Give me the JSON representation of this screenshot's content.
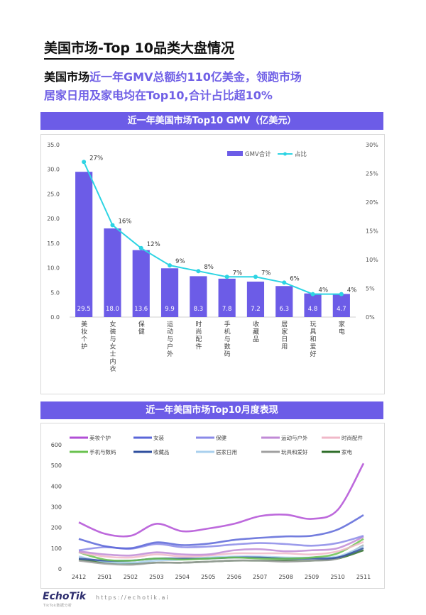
{
  "title": "美国市场-Top 10品类大盘情况",
  "headline": {
    "part1": "美国市场",
    "part2": "近一年GMV总额约110亿美金，领跑市场",
    "part3": "居家日用及家电均在Top10,合计占比超10%"
  },
  "chart1_banner": "近一年美国市场Top10 GMV（亿美元）",
  "chart2_banner": "近一年美国市场Top10月度表现",
  "footer": {
    "logo": "EchoTik",
    "logo_sub": "TikTok数据分析",
    "url": "https://echotik.ai"
  },
  "colors": {
    "accent": "#6c5ce7",
    "line": "#2dd4e3"
  },
  "chart_data": [
    {
      "type": "bar",
      "title": "近一年美国市场Top10 GMV（亿美元）",
      "legend": [
        "GMV合计",
        "占比"
      ],
      "categories": [
        "美妆个护",
        "女装与女士内衣",
        "保健",
        "运动与户外",
        "时尚配件",
        "手机与数码",
        "收藏品",
        "居家日用",
        "玩具和爱好",
        "家电"
      ],
      "series": [
        {
          "name": "GMV合计",
          "values": [
            29.5,
            18.0,
            13.6,
            9.9,
            8.3,
            7.8,
            7.2,
            6.3,
            4.8,
            4.7
          ],
          "labels": [
            "29.5",
            "18.0",
            "13.6",
            "9.9",
            "8.3",
            "7.8",
            "7.2",
            "6.3",
            "4.8",
            "4.7"
          ]
        },
        {
          "name": "占比",
          "values": [
            27,
            16,
            12,
            9,
            8,
            7,
            7,
            6,
            4,
            4
          ],
          "labels": [
            "27%",
            "16%",
            "12%",
            "9%",
            "8%",
            "7%",
            "7%",
            "6%",
            "4%",
            "4%"
          ]
        }
      ],
      "y_left_ticks": [
        "0.0",
        "5.0",
        "10.0",
        "15.0",
        "20.0",
        "25.0",
        "30.0",
        "35.0"
      ],
      "y_right_ticks": [
        "0%",
        "5%",
        "10%",
        "15%",
        "20%",
        "25%",
        "30%"
      ],
      "ylim_left": [
        0,
        35
      ],
      "ylim_right": [
        0,
        30
      ]
    },
    {
      "type": "line",
      "title": "近一年美国市场Top10月度表现",
      "x": [
        "2412",
        "2501",
        "2502",
        "2503",
        "2504",
        "2505",
        "2506",
        "2507",
        "2508",
        "2509",
        "2510",
        "2511"
      ],
      "y_ticks": [
        "0",
        "100",
        "200",
        "300",
        "400",
        "500",
        "600"
      ],
      "ylim": [
        0,
        600
      ],
      "series": [
        {
          "name": "美妆个护",
          "color": "#b14fd6",
          "values": [
            225,
            170,
            160,
            218,
            182,
            195,
            218,
            255,
            262,
            242,
            285,
            510
          ]
        },
        {
          "name": "女装",
          "color": "#5a66d8",
          "values": [
            145,
            110,
            100,
            128,
            115,
            122,
            140,
            150,
            157,
            160,
            190,
            260
          ]
        },
        {
          "name": "保健",
          "color": "#8a8ae8",
          "values": [
            90,
            105,
            97,
            120,
            105,
            108,
            118,
            125,
            120,
            112,
            125,
            160
          ]
        },
        {
          "name": "运动与户外",
          "color": "#c08ad6",
          "values": [
            85,
            70,
            65,
            80,
            70,
            70,
            90,
            95,
            85,
            90,
            100,
            155
          ]
        },
        {
          "name": "时尚配件",
          "color": "#f0b8c8",
          "values": [
            80,
            60,
            55,
            70,
            60,
            65,
            75,
            75,
            75,
            70,
            85,
            130
          ]
        },
        {
          "name": "手机与数码",
          "color": "#6ac24f",
          "values": [
            80,
            45,
            40,
            50,
            45,
            50,
            55,
            50,
            50,
            55,
            75,
            145
          ]
        },
        {
          "name": "收藏品",
          "color": "#2f4f9e",
          "values": [
            50,
            40,
            40,
            50,
            50,
            50,
            55,
            55,
            50,
            50,
            55,
            100
          ]
        },
        {
          "name": "居家日用",
          "color": "#aad0ee",
          "values": [
            60,
            35,
            30,
            40,
            45,
            55,
            60,
            60,
            55,
            55,
            60,
            110
          ]
        },
        {
          "name": "玩具和爱好",
          "color": "#a0a0a0",
          "values": [
            40,
            25,
            20,
            30,
            30,
            35,
            40,
            40,
            35,
            40,
            50,
            115
          ]
        },
        {
          "name": "家电",
          "color": "#2f6e2a",
          "values": [
            45,
            30,
            25,
            30,
            30,
            35,
            40,
            40,
            40,
            40,
            50,
            90
          ]
        }
      ]
    }
  ]
}
